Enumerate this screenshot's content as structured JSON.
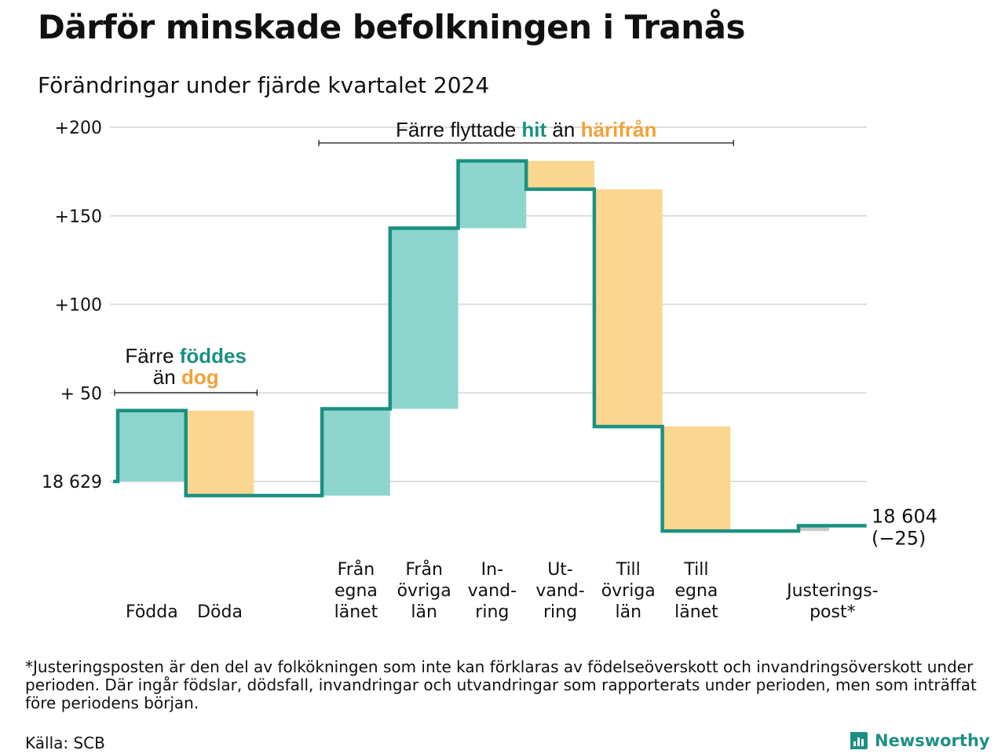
{
  "title": "Därför minskade befolkningen i Tranås",
  "subtitle": "Förändringar under fjärde kvartalet 2024",
  "chart_data": {
    "type": "waterfall",
    "start_value": 18629,
    "start_label": "18 629",
    "end_label_value": "18 604",
    "end_label_change": "(−25)",
    "y_tick_labels": [
      "18 629",
      "+ 50",
      "+100",
      "+150",
      "+200"
    ],
    "y_tick_values": [
      0,
      50,
      100,
      150,
      200
    ],
    "ylim": [
      -35,
      200
    ],
    "grid": true,
    "steps": [
      {
        "label_lines": [
          "Födda"
        ],
        "change": 40,
        "kind": "positive"
      },
      {
        "label_lines": [
          "Döda"
        ],
        "change": -48,
        "kind": "negative"
      },
      {
        "label_lines": [],
        "change": 0,
        "kind": "gap"
      },
      {
        "label_lines": [
          "Från",
          "egna",
          "länet"
        ],
        "change": 49,
        "kind": "positive"
      },
      {
        "label_lines": [
          "Från",
          "övriga",
          "län"
        ],
        "change": 102,
        "kind": "positive"
      },
      {
        "label_lines": [
          "In-",
          "vand-",
          "ring"
        ],
        "change": 38,
        "kind": "positive"
      },
      {
        "label_lines": [
          "Ut-",
          "vand-",
          "ring"
        ],
        "change": -16,
        "kind": "negative"
      },
      {
        "label_lines": [
          "Till",
          "övriga",
          "län"
        ],
        "change": -134,
        "kind": "negative"
      },
      {
        "label_lines": [
          "Till",
          "egna",
          "länet"
        ],
        "change": -59,
        "kind": "negative"
      },
      {
        "label_lines": [],
        "change": 0,
        "kind": "gap"
      },
      {
        "label_lines": [
          "Justerings-",
          "post*"
        ],
        "change": 3,
        "kind": "adjustment"
      }
    ],
    "annotations": [
      {
        "text_parts": [
          {
            "text": "Färre ",
            "style": "plain"
          },
          {
            "text": "föddes",
            "style": "positive"
          }
        ],
        "text_parts_line2": [
          {
            "text": "än ",
            "style": "plain"
          },
          {
            "text": "dog",
            "style": "negative"
          }
        ]
      },
      {
        "text_parts": [
          {
            "text": "Färre flyttade ",
            "style": "plain"
          },
          {
            "text": "hit",
            "style": "positive"
          },
          {
            "text": "  än ",
            "style": "plain"
          },
          {
            "text": "härifrån",
            "style": "negative"
          }
        ]
      }
    ],
    "colors": {
      "positive_fill": "#8dd5cd",
      "negative_fill": "#fbd68f",
      "adjustment_fill": "#c8c8c8",
      "line": "#1a9182",
      "positive_text": "#1a9182",
      "negative_text": "#f0a23a",
      "grid": "#dddddd"
    }
  },
  "footnote": "*Justeringsposten är den del av folkökningen som inte kan förklaras av födelseöverskott och invandringsöverskott under perioden. Där ingår födslar, dödsfall, invandringar och utvandringar som rapporterats under perioden, men som inträffat före periodens början.",
  "source": "Källa: SCB",
  "brand": {
    "name": "Newsworthy",
    "icon": "newsworthy-logo-icon"
  }
}
